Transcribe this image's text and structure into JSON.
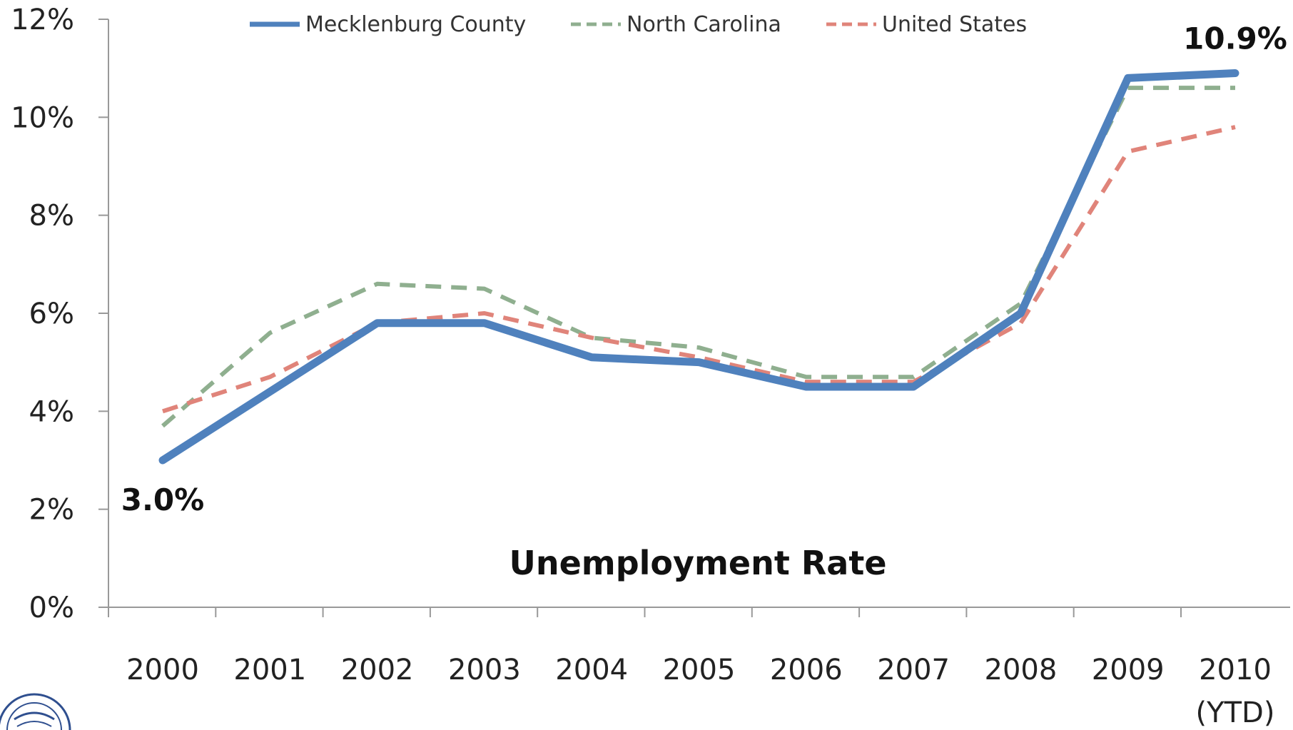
{
  "chart_data": {
    "type": "line",
    "title": "Unemployment Rate",
    "x": [
      "2000",
      "2001",
      "2002",
      "2003",
      "2004",
      "2005",
      "2006",
      "2007",
      "2008",
      "2009",
      "2010"
    ],
    "x_sublabels": [
      "",
      "",
      "",
      "",
      "",
      "",
      "",
      "",
      "",
      "",
      "(YTD)"
    ],
    "y_ticks": [
      "0%",
      "2%",
      "4%",
      "6%",
      "8%",
      "10%",
      "12%"
    ],
    "ylim": [
      0,
      12
    ],
    "y_unit": "%",
    "grid": false,
    "legend_position": "top",
    "series": [
      {
        "name": "Mecklenburg County",
        "color": "#4f81bd",
        "style": "solid",
        "values": [
          3.0,
          4.4,
          5.8,
          5.8,
          5.1,
          5.0,
          4.5,
          4.5,
          6.0,
          10.8,
          10.9
        ]
      },
      {
        "name": "North Carolina",
        "color": "#8faf8f",
        "style": "dashed",
        "values": [
          3.7,
          5.6,
          6.6,
          6.5,
          5.5,
          5.3,
          4.7,
          4.7,
          6.2,
          10.6,
          10.6
        ]
      },
      {
        "name": "United States",
        "color": "#e0847a",
        "style": "dashed",
        "values": [
          4.0,
          4.7,
          5.8,
          6.0,
          5.5,
          5.1,
          4.6,
          4.6,
          5.8,
          9.3,
          9.8
        ]
      }
    ],
    "annotations": [
      {
        "text": "3.0%",
        "series": 0,
        "index": 0
      },
      {
        "text": "10.9%",
        "series": 0,
        "index": 10
      }
    ]
  }
}
